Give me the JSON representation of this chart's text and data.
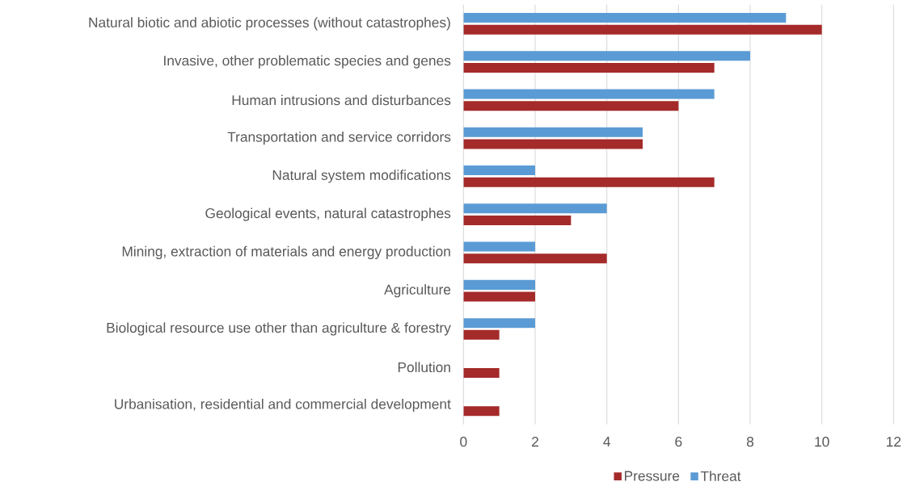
{
  "chart_data": {
    "type": "bar",
    "orientation": "horizontal",
    "categories": [
      "Natural biotic and abiotic processes (without catastrophes)",
      "Invasive, other problematic species and genes",
      "Human intrusions and disturbances",
      "Transportation and service corridors",
      "Natural system modifications",
      "Geological events, natural catastrophes",
      "Mining, extraction of materials and energy production",
      "Agriculture",
      "Biological resource use other than agriculture & forestry",
      "Pollution",
      "Urbanisation, residential and commercial development"
    ],
    "series": [
      {
        "name": "Pressure",
        "color": "#a52a2a",
        "values": [
          10,
          7,
          6,
          5,
          7,
          3,
          4,
          2,
          1,
          1,
          1
        ]
      },
      {
        "name": "Threat",
        "color": "#5b9bd5",
        "values": [
          9,
          8,
          7,
          5,
          2,
          4,
          2,
          2,
          2,
          null,
          null
        ]
      }
    ],
    "xlim": [
      0,
      12
    ],
    "xticks": [
      0,
      2,
      4,
      6,
      8,
      10,
      12
    ],
    "grid": "x",
    "legend": "bottom"
  }
}
